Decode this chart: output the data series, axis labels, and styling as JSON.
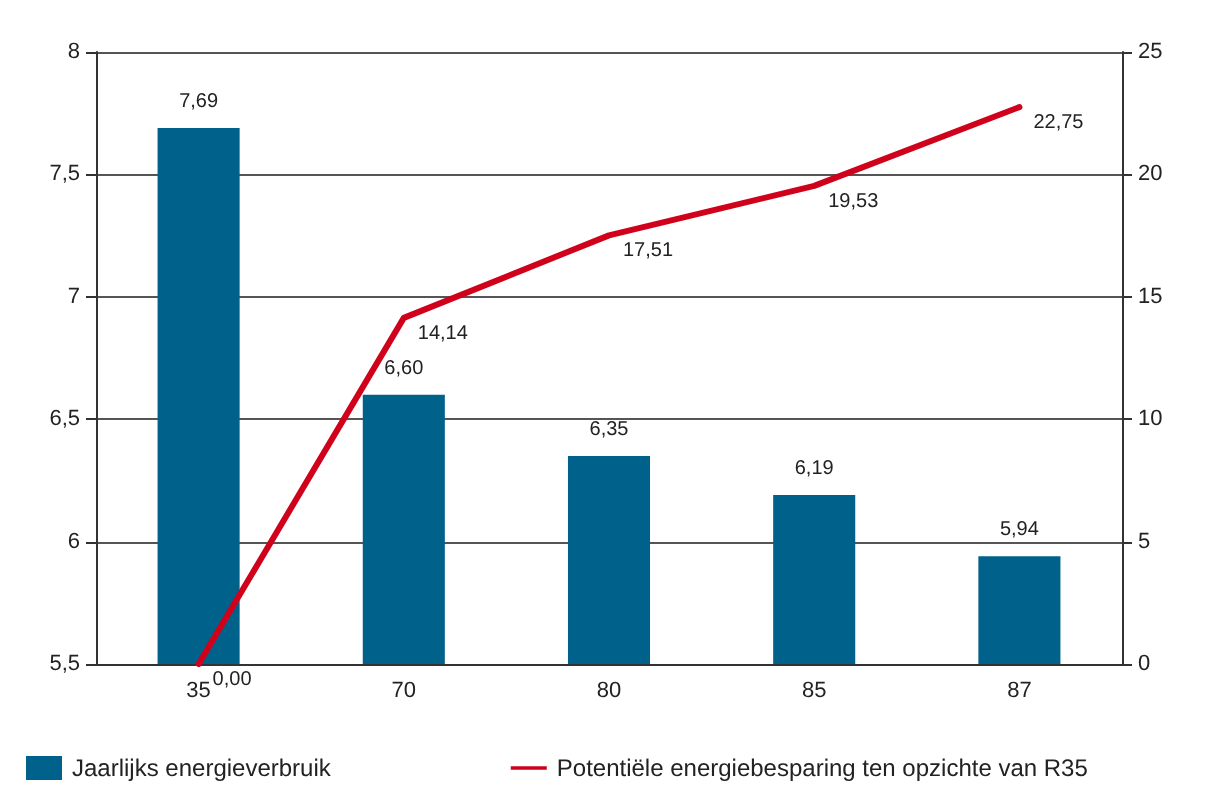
{
  "chart_data": {
    "type": "bar",
    "categories": [
      "35",
      "70",
      "80",
      "85",
      "87"
    ],
    "series": [
      {
        "name": "Jaarlijks energieverbruik",
        "color": "#00628b",
        "values": [
          7.69,
          6.6,
          6.35,
          6.19,
          5.94
        ],
        "value_labels": [
          "7,69",
          "6,60",
          "6,35",
          "6,19",
          "5,94"
        ]
      },
      {
        "name": "Potentiële energiebesparing ten opzichte van R35",
        "type": "line",
        "axis": "y2",
        "color": "#d0021b",
        "values": [
          0,
          14.14,
          17.51,
          19.53,
          22.75
        ],
        "value_labels": [
          "0,00",
          "14,14",
          "17,51",
          "19,53",
          "22,75"
        ]
      }
    ],
    "ylim": [
      5.5,
      8
    ],
    "yticks": [
      {
        "value": 5.5,
        "label": "5,5"
      },
      6,
      {
        "value": 6.5,
        "label": "6,5"
      },
      7,
      {
        "value": 7.5,
        "label": "7,5"
      },
      8
    ],
    "y2lim": [
      0,
      25
    ],
    "y2ticks": [
      0,
      5,
      10,
      15,
      20,
      25
    ],
    "grid": "y",
    "legend": "bottom",
    "marker": "none",
    "line_style": "solid"
  }
}
